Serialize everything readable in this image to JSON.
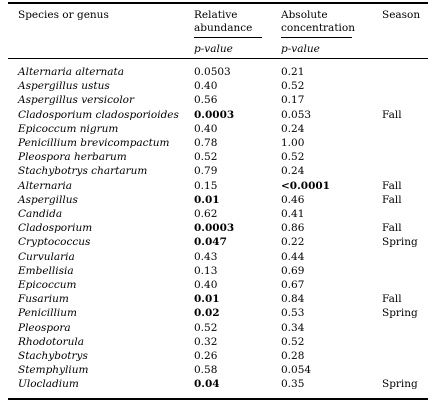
{
  "table": {
    "headers": {
      "species": "Species or genus",
      "relative": [
        "Relative",
        "abundance"
      ],
      "absolute": [
        "Absolute",
        "concentration"
      ],
      "season": "Season",
      "relative_sub": "p-value",
      "absolute_sub": "p-value"
    },
    "rows": [
      {
        "name": "Alternaria alternata",
        "rel": "0.0503",
        "abs": "0.21"
      },
      {
        "name": "Aspergillus ustus",
        "rel": "0.40",
        "abs": "0.52"
      },
      {
        "name": "Aspergillus versicolor",
        "rel": "0.56",
        "abs": "0.17"
      },
      {
        "name": "Cladosporium cladosporioides",
        "rel": "0.0003",
        "rel_bold": true,
        "abs": "0.053",
        "season": "Fall"
      },
      {
        "name": "Epicoccum nigrum",
        "rel": "0.40",
        "abs": "0.24"
      },
      {
        "name": "Penicillium brevicompactum",
        "rel": "0.78",
        "abs": "1.00"
      },
      {
        "name": "Pleospora herbarum",
        "rel": "0.52",
        "abs": "0.52"
      },
      {
        "name": "Stachybotrys chartarum",
        "rel": "0.79",
        "abs": "0.24"
      },
      {
        "name": "Alternaria",
        "rel": "0.15",
        "abs": "<0.0001",
        "abs_bold": true,
        "season": "Fall"
      },
      {
        "name": "Aspergillus",
        "rel": "0.01",
        "rel_bold": true,
        "abs": "0.46",
        "season": "Fall"
      },
      {
        "name": "Candida",
        "rel": "0.62",
        "abs": "0.41"
      },
      {
        "name": "Cladosporium",
        "rel": "0.0003",
        "rel_bold": true,
        "abs": "0.86",
        "season": "Fall"
      },
      {
        "name": "Cryptococcus",
        "rel": "0.047",
        "rel_bold": true,
        "abs": "0.22",
        "season": "Spring"
      },
      {
        "name": "Curvularia",
        "rel": "0.43",
        "abs": "0.44"
      },
      {
        "name": "Embellisia",
        "rel": "0.13",
        "abs": "0.69"
      },
      {
        "name": "Epicoccum",
        "rel": "0.40",
        "abs": "0.67"
      },
      {
        "name": "Fusarium",
        "rel": "0.01",
        "rel_bold": true,
        "abs": "0.84",
        "season": "Fall"
      },
      {
        "name": "Penicillium",
        "rel": "0.02",
        "rel_bold": true,
        "abs": "0.53",
        "season": "Spring"
      },
      {
        "name": "Pleospora",
        "rel": "0.52",
        "abs": "0.34"
      },
      {
        "name": "Rhodotorula",
        "rel": "0.32",
        "abs": "0.52"
      },
      {
        "name": "Stachybotrys",
        "rel": "0.26",
        "abs": "0.28"
      },
      {
        "name": "Stemphylium",
        "rel": "0.58",
        "abs": "0.054"
      },
      {
        "name": "Ulocladium",
        "rel": "0.04",
        "rel_bold": true,
        "abs": "0.35",
        "season": "Spring"
      }
    ]
  }
}
